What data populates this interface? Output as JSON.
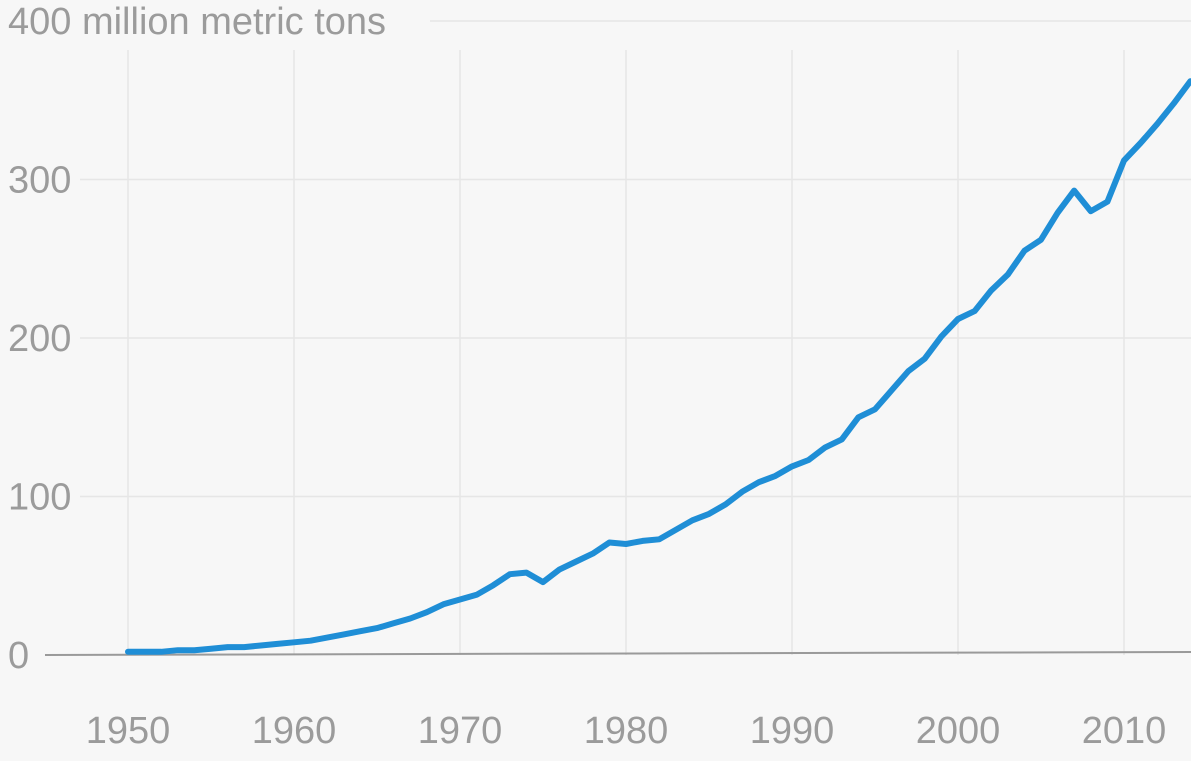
{
  "chart_data": {
    "type": "line",
    "title": "",
    "xlabel": "",
    "ylabel": "",
    "y_unit_label": "400 million metric tons",
    "xlim": [
      1950,
      2014
    ],
    "ylim": [
      0,
      400
    ],
    "x_ticks": [
      1950,
      1960,
      1970,
      1980,
      1990,
      2000,
      2010
    ],
    "y_ticks": [
      {
        "value": 0,
        "label": "0"
      },
      {
        "value": 100,
        "label": "100"
      },
      {
        "value": 200,
        "label": "200"
      },
      {
        "value": 300,
        "label": "300"
      },
      {
        "value": 400,
        "label": "400 million metric tons"
      }
    ],
    "grid": true,
    "legend": "none",
    "series": [
      {
        "color": "#1f8ed6",
        "x": [
          1950,
          1951,
          1952,
          1953,
          1954,
          1955,
          1956,
          1957,
          1958,
          1959,
          1960,
          1961,
          1962,
          1963,
          1964,
          1965,
          1966,
          1967,
          1968,
          1969,
          1970,
          1971,
          1972,
          1973,
          1974,
          1975,
          1976,
          1977,
          1978,
          1979,
          1980,
          1981,
          1982,
          1983,
          1984,
          1985,
          1986,
          1987,
          1988,
          1989,
          1990,
          1991,
          1992,
          1993,
          1994,
          1995,
          1996,
          1997,
          1998,
          1999,
          2000,
          2001,
          2002,
          2003,
          2004,
          2005,
          2006,
          2007,
          2008,
          2009,
          2010,
          2011,
          2012,
          2013,
          2014
        ],
        "values": [
          2,
          2,
          2,
          3,
          3,
          4,
          5,
          5,
          6,
          7,
          8,
          9,
          11,
          13,
          15,
          17,
          20,
          23,
          27,
          32,
          35,
          38,
          44,
          51,
          52,
          46,
          54,
          59,
          64,
          71,
          70,
          72,
          73,
          79,
          85,
          89,
          95,
          103,
          109,
          113,
          119,
          123,
          131,
          136,
          150,
          155,
          167,
          179,
          187,
          201,
          212,
          217,
          230,
          240,
          255,
          262,
          279,
          293,
          280,
          286,
          312,
          323,
          335,
          348,
          362
        ]
      }
    ]
  }
}
